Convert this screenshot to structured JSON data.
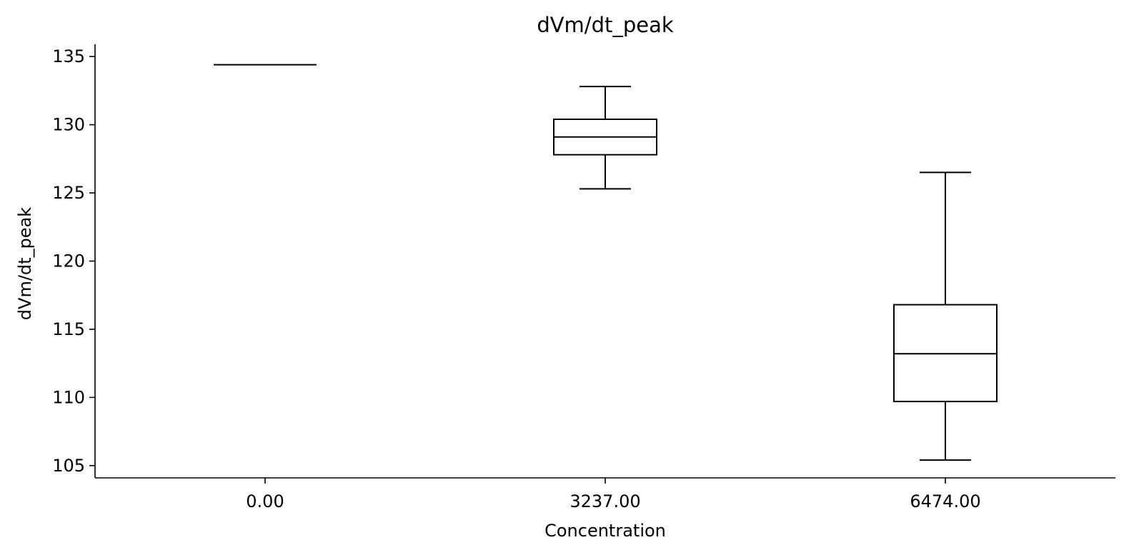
{
  "chart_data": {
    "type": "box",
    "title": "dVm/dt_peak",
    "xlabel": "Concentration",
    "ylabel": "dVm/dt_peak",
    "ylim": [
      104.1,
      135.9
    ],
    "yticks": [
      105,
      110,
      115,
      120,
      125,
      130,
      135
    ],
    "categories": [
      "0.00",
      "3237.00",
      "6474.00"
    ],
    "boxes": [
      {
        "category": "0.00",
        "whisker_low": 134.4,
        "q1": 134.4,
        "median": 134.4,
        "q3": 134.4,
        "whisker_high": 134.4
      },
      {
        "category": "3237.00",
        "whisker_low": 125.3,
        "q1": 127.8,
        "median": 129.1,
        "q3": 130.4,
        "whisker_high": 132.8
      },
      {
        "category": "6474.00",
        "whisker_low": 105.4,
        "q1": 109.7,
        "median": 113.2,
        "q3": 116.8,
        "whisker_high": 126.5
      }
    ],
    "grid": false,
    "color": "#000000"
  }
}
